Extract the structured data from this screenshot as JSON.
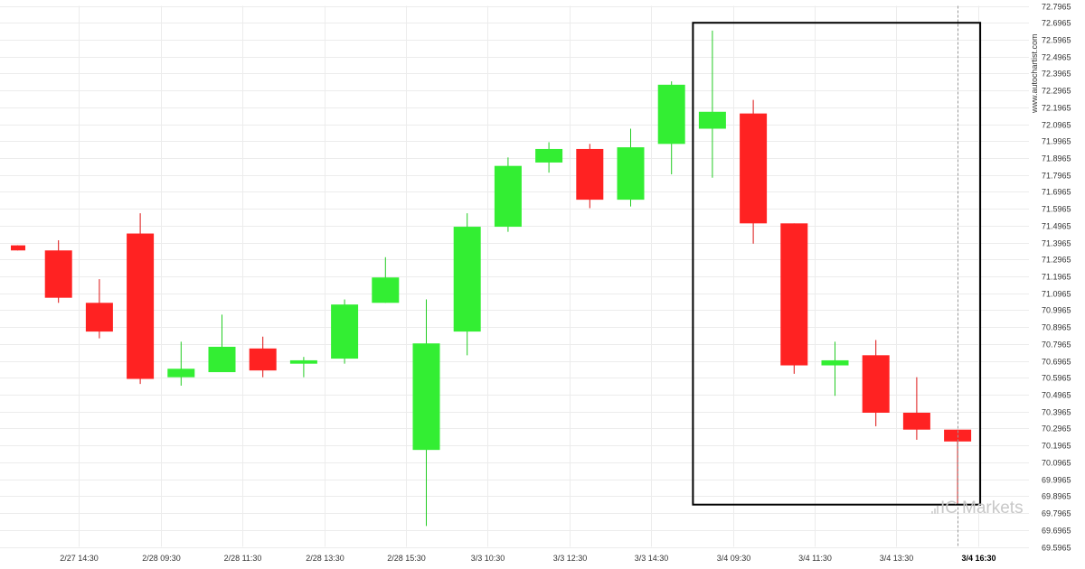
{
  "chart_data": {
    "type": "candlestick",
    "y_ticks": [
      "72.7965",
      "72.6965",
      "72.5965",
      "72.4965",
      "72.3965",
      "72.2965",
      "72.1965",
      "72.0965",
      "71.9965",
      "71.8965",
      "71.7965",
      "71.6965",
      "71.5965",
      "71.4965",
      "71.3965",
      "71.2965",
      "71.1965",
      "71.0965",
      "70.9965",
      "70.8965",
      "70.7965",
      "70.6965",
      "70.5965",
      "70.4965",
      "70.3965",
      "70.2965",
      "70.1965",
      "70.0965",
      "69.9965",
      "69.8965",
      "69.7965",
      "69.6965",
      "69.5965"
    ],
    "ylim": [
      69.5965,
      72.7965
    ],
    "x_ticks": [
      {
        "label": "2/27 14:30",
        "index": 1,
        "bold": false
      },
      {
        "label": "2/28 09:30",
        "index": 3,
        "bold": false
      },
      {
        "label": "2/28 11:30",
        "index": 5,
        "bold": false
      },
      {
        "label": "2/28 13:30",
        "index": 7,
        "bold": false
      },
      {
        "label": "2/28 15:30",
        "index": 9,
        "bold": false
      },
      {
        "label": "3/3 10:30",
        "index": 11,
        "bold": false
      },
      {
        "label": "3/3 12:30",
        "index": 13,
        "bold": false
      },
      {
        "label": "3/3 14:30",
        "index": 15,
        "bold": false
      },
      {
        "label": "3/4 09:30",
        "index": 17,
        "bold": false
      },
      {
        "label": "3/4 11:30",
        "index": 19,
        "bold": false
      },
      {
        "label": "3/4 13:30",
        "index": 21,
        "bold": false
      },
      {
        "label": "3/4 16:30",
        "index": 23,
        "bold": true
      }
    ],
    "candles": [
      {
        "open": 71.38,
        "high": 71.38,
        "low": 71.35,
        "close": 71.35
      },
      {
        "open": 71.35,
        "high": 71.41,
        "low": 71.04,
        "close": 71.07
      },
      {
        "open": 71.04,
        "high": 71.18,
        "low": 70.83,
        "close": 70.87
      },
      {
        "open": 71.45,
        "high": 71.57,
        "low": 70.56,
        "close": 70.59
      },
      {
        "open": 70.6,
        "high": 70.81,
        "low": 70.55,
        "close": 70.65
      },
      {
        "open": 70.63,
        "high": 70.97,
        "low": 70.63,
        "close": 70.78
      },
      {
        "open": 70.77,
        "high": 70.84,
        "low": 70.6,
        "close": 70.64
      },
      {
        "open": 70.68,
        "high": 70.72,
        "low": 70.6,
        "close": 70.7
      },
      {
        "open": 70.71,
        "high": 71.06,
        "low": 70.68,
        "close": 71.03
      },
      {
        "open": 71.04,
        "high": 71.31,
        "low": 71.04,
        "close": 71.19
      },
      {
        "open": 70.17,
        "high": 71.06,
        "low": 69.72,
        "close": 70.8
      },
      {
        "open": 70.87,
        "high": 71.57,
        "low": 70.73,
        "close": 71.49
      },
      {
        "open": 71.49,
        "high": 71.9,
        "low": 71.46,
        "close": 71.85
      },
      {
        "open": 71.87,
        "high": 71.99,
        "low": 71.81,
        "close": 71.95
      },
      {
        "open": 71.95,
        "high": 71.98,
        "low": 71.6,
        "close": 71.65
      },
      {
        "open": 71.65,
        "high": 72.07,
        "low": 71.61,
        "close": 71.96
      },
      {
        "open": 71.98,
        "high": 72.35,
        "low": 71.8,
        "close": 72.33
      },
      {
        "open": 72.07,
        "high": 72.65,
        "low": 71.78,
        "close": 72.17
      },
      {
        "open": 72.16,
        "high": 72.24,
        "low": 71.39,
        "close": 71.51
      },
      {
        "open": 71.51,
        "high": 71.51,
        "low": 70.62,
        "close": 70.67
      },
      {
        "open": 70.67,
        "high": 70.81,
        "low": 70.49,
        "close": 70.7
      },
      {
        "open": 70.73,
        "high": 70.82,
        "low": 70.31,
        "close": 70.39
      },
      {
        "open": 70.39,
        "high": 70.6,
        "low": 70.23,
        "close": 70.29
      },
      {
        "open": 70.29,
        "high": 70.29,
        "low": 69.85,
        "close": 70.22
      }
    ],
    "highlight_box": {
      "start_index": 17,
      "end_index": 23,
      "y_from": 69.8465,
      "y_to": 72.6965
    },
    "marker_index": 23,
    "colors": {
      "up": "#33ee33",
      "down": "#ff2222",
      "wick_up": "#22cc22",
      "wick_down": "#dd1111",
      "grid": "#ececec",
      "box": "#000000",
      "marker": "#999999"
    }
  },
  "watermark": {
    "site": "www.autochartist.com",
    "logo": "Markets",
    "logo_prefix": "IC"
  }
}
